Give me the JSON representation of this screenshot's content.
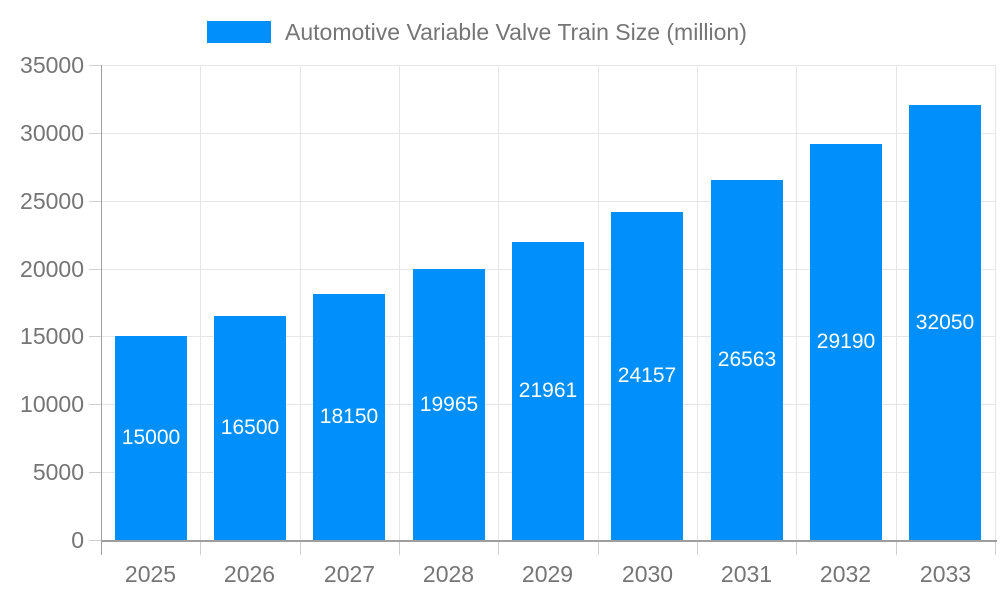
{
  "legend": {
    "label": "Automotive Variable Valve Train Size (million)"
  },
  "chart_data": {
    "type": "bar",
    "title": "Automotive Variable Valve Train Size (million)",
    "categories": [
      "2025",
      "2026",
      "2027",
      "2028",
      "2029",
      "2030",
      "2031",
      "2032",
      "2033"
    ],
    "series": [
      {
        "name": "Automotive Variable Valve Train Size (million)",
        "values": [
          15000,
          16500,
          18150,
          19965,
          21961,
          24157,
          26563,
          29190,
          32050
        ]
      }
    ],
    "value_labels_shown": true,
    "xlabel": "",
    "ylabel": "",
    "ylim": [
      0,
      35000
    ],
    "yticks": [
      0,
      5000,
      10000,
      15000,
      20000,
      25000,
      30000,
      35000
    ],
    "grid": true,
    "legend_position": "top"
  },
  "colors": {
    "bar": "#018FFB",
    "grid": "#e6e6e6",
    "axis": "#9e9e9e",
    "tick": "#cfcfcf",
    "axis_text": "#757575",
    "value_label_text": "#ffffff",
    "background": "#ffffff"
  }
}
